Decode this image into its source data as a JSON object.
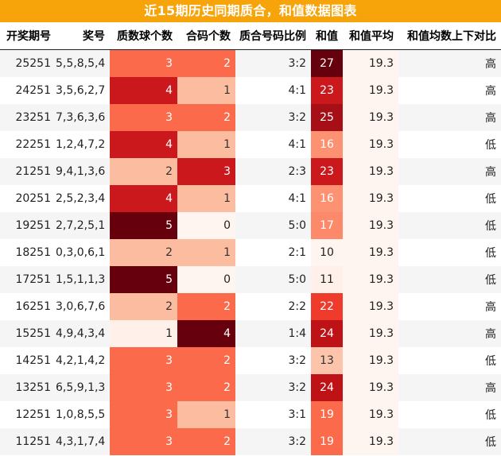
{
  "title": "近15期历史同期质合，和值数据图表",
  "headers": [
    "开奖期号",
    "奖号",
    "质数球个数",
    "合码个数",
    "质合号码比例",
    "和值",
    "和值平均",
    "和值均数上下对比"
  ],
  "rows": [
    {
      "issue": "25251",
      "numbers": "5,5,8,5,4",
      "prime": "3",
      "composite": "2",
      "ratio": "3:2",
      "sum": "27",
      "avg": "19.3",
      "cmp": "高"
    },
    {
      "issue": "24251",
      "numbers": "3,5,6,2,7",
      "prime": "4",
      "composite": "1",
      "ratio": "4:1",
      "sum": "23",
      "avg": "19.3",
      "cmp": "高"
    },
    {
      "issue": "23251",
      "numbers": "7,3,6,3,6",
      "prime": "3",
      "composite": "2",
      "ratio": "3:2",
      "sum": "25",
      "avg": "19.3",
      "cmp": "高"
    },
    {
      "issue": "22251",
      "numbers": "1,2,4,7,2",
      "prime": "4",
      "composite": "1",
      "ratio": "4:1",
      "sum": "16",
      "avg": "19.3",
      "cmp": "低"
    },
    {
      "issue": "21251",
      "numbers": "9,4,1,3,6",
      "prime": "2",
      "composite": "3",
      "ratio": "2:3",
      "sum": "23",
      "avg": "19.3",
      "cmp": "高"
    },
    {
      "issue": "20251",
      "numbers": "2,5,2,3,4",
      "prime": "4",
      "composite": "1",
      "ratio": "4:1",
      "sum": "16",
      "avg": "19.3",
      "cmp": "低"
    },
    {
      "issue": "19251",
      "numbers": "2,7,2,5,1",
      "prime": "5",
      "composite": "0",
      "ratio": "5:0",
      "sum": "17",
      "avg": "19.3",
      "cmp": "低"
    },
    {
      "issue": "18251",
      "numbers": "0,3,0,6,1",
      "prime": "2",
      "composite": "1",
      "ratio": "2:1",
      "sum": "10",
      "avg": "19.3",
      "cmp": "低"
    },
    {
      "issue": "17251",
      "numbers": "1,5,1,1,3",
      "prime": "5",
      "composite": "0",
      "ratio": "5:0",
      "sum": "11",
      "avg": "19.3",
      "cmp": "低"
    },
    {
      "issue": "16251",
      "numbers": "3,0,6,7,6",
      "prime": "2",
      "composite": "2",
      "ratio": "2:2",
      "sum": "22",
      "avg": "19.3",
      "cmp": "高"
    },
    {
      "issue": "15251",
      "numbers": "4,9,4,3,4",
      "prime": "1",
      "composite": "4",
      "ratio": "1:4",
      "sum": "24",
      "avg": "19.3",
      "cmp": "高"
    },
    {
      "issue": "14251",
      "numbers": "4,2,1,4,2",
      "prime": "3",
      "composite": "2",
      "ratio": "3:2",
      "sum": "13",
      "avg": "19.3",
      "cmp": "低"
    },
    {
      "issue": "13251",
      "numbers": "6,5,9,1,3",
      "prime": "3",
      "composite": "2",
      "ratio": "3:2",
      "sum": "24",
      "avg": "19.3",
      "cmp": "高"
    },
    {
      "issue": "12251",
      "numbers": "1,0,8,5,5",
      "prime": "3",
      "composite": "1",
      "ratio": "3:1",
      "sum": "19",
      "avg": "19.3",
      "cmp": "低"
    },
    {
      "issue": "11251",
      "numbers": "4,3,1,7,4",
      "prime": "3",
      "composite": "2",
      "ratio": "3:2",
      "sum": "19",
      "avg": "19.3",
      "cmp": "低"
    }
  ],
  "colors": {
    "title_bg": "#f7a30a",
    "prime_scale": {
      "1": "#fff1ea",
      "2": "#fcbca0",
      "3": "#fb6b4b",
      "4": "#cb181d",
      "5": "#67000d"
    },
    "composite_scale": {
      "0": "#fff5f0",
      "1": "#fcbca0",
      "2": "#fb6b4b",
      "3": "#cb181d",
      "4": "#67000d"
    },
    "sum_scale": {
      "10": "#fff5f0",
      "11": "#fff1ea",
      "13": "#fcc5ab",
      "16": "#fc9272",
      "17": "#fc8a6a",
      "19": "#fb6b4b",
      "22": "#ef3b2c",
      "23": "#cb181d",
      "24": "#bf1217",
      "25": "#a50f15",
      "27": "#67000d"
    },
    "avg_bg": "#fff5f0"
  }
}
